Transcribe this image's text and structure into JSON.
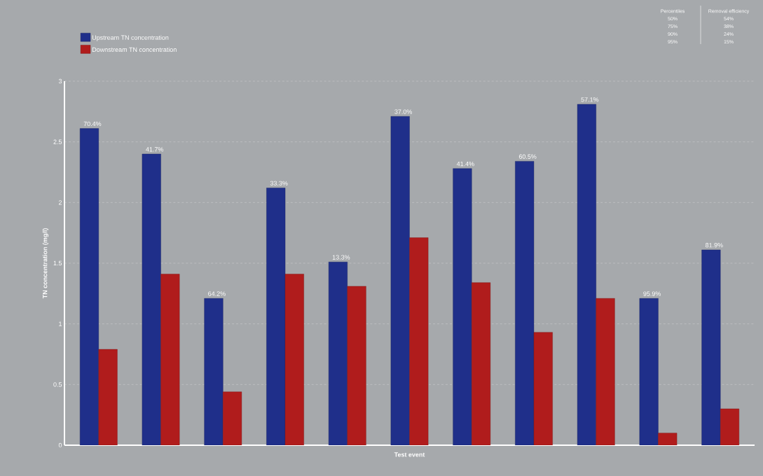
{
  "chart_data": {
    "type": "bar",
    "xlabel": "Test event",
    "ylabel": "TN concentration (mg/l)",
    "categories": [
      null,
      null,
      null,
      null,
      null,
      null,
      null,
      null,
      null,
      null,
      null
    ],
    "series": [
      {
        "name": "Upstream TN concentration",
        "color": "#1f2f8a",
        "values": [
          2.61,
          2.4,
          1.21,
          2.12,
          1.51,
          2.71,
          2.28,
          2.34,
          2.81,
          1.21,
          1.61
        ]
      },
      {
        "name": "Downstream TN concentration",
        "color": "#b01c1c",
        "values": [
          0.79,
          1.41,
          0.44,
          1.41,
          1.31,
          1.71,
          1.34,
          0.93,
          1.21,
          0.1,
          0.3
        ]
      }
    ],
    "ylim": [
      0,
      3
    ],
    "yticks": [
      0,
      0.5,
      1,
      1.5,
      2,
      2.5,
      3
    ],
    "grid": "y",
    "legend": "top left",
    "annotations": [
      "Percentiles",
      "Removal efficiency",
      "50%",
      "54%",
      "75%",
      "38%",
      "90%",
      "24%",
      "95%",
      "15%",
      {
        "text": "70.4%",
        "y": 2.61
      },
      {
        "text": "41.7%",
        "y": 2.4
      },
      {
        "text": "64.2%",
        "y": 1.21
      },
      {
        "text": "33.3%",
        "y": 2.12
      },
      {
        "text": "13.3%",
        "y": 1.51
      },
      {
        "text": "37.0%",
        "y": 2.71
      },
      {
        "text": "41.4%",
        "y": 2.28
      },
      {
        "text": "60.5%",
        "y": 2.34
      },
      {
        "text": "57.1%",
        "y": 2.81
      },
      {
        "text": "95.9%",
        "y": 1.21
      },
      {
        "text": "81.9%",
        "y": 1.61
      }
    ]
  }
}
